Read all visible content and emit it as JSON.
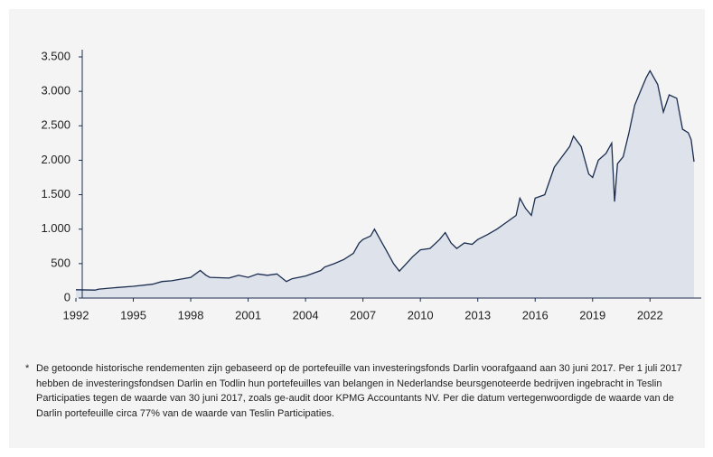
{
  "chart_data": {
    "type": "area",
    "x": [
      1992,
      1993,
      1993.2,
      1994,
      1995,
      1996,
      1996.5,
      1997,
      1998,
      1998.5,
      1998.8,
      1999,
      2000,
      2000.5,
      2001,
      2001.5,
      2002,
      2002.5,
      2003,
      2003.3,
      2004,
      2004.8,
      2005,
      2005.5,
      2006,
      2006.5,
      2006.8,
      2007,
      2007.4,
      2007.6,
      2007.9,
      2008.2,
      2008.6,
      2008.9,
      2009.2,
      2009.6,
      2010,
      2010.5,
      2011,
      2011.3,
      2011.6,
      2011.9,
      2012.3,
      2012.7,
      2013,
      2013.5,
      2014,
      2014.5,
      2015,
      2015.2,
      2015.5,
      2015.8,
      2016,
      2016.5,
      2017,
      2017.4,
      2017.8,
      2018,
      2018.4,
      2018.8,
      2019,
      2019.3,
      2019.7,
      2020,
      2020.15,
      2020.3,
      2020.6,
      2020.9,
      2021.2,
      2021.5,
      2021.8,
      2022,
      2022.4,
      2022.7,
      2023,
      2023.4,
      2023.7,
      2024,
      2024.15,
      2024.3
    ],
    "values": [
      120,
      115,
      130,
      150,
      170,
      200,
      240,
      250,
      300,
      400,
      330,
      300,
      290,
      330,
      300,
      350,
      330,
      350,
      240,
      280,
      320,
      400,
      450,
      500,
      560,
      650,
      800,
      850,
      900,
      1000,
      850,
      700,
      500,
      390,
      480,
      600,
      700,
      720,
      850,
      950,
      800,
      720,
      800,
      780,
      850,
      920,
      1000,
      1100,
      1200,
      1450,
      1300,
      1200,
      1450,
      1500,
      1900,
      2050,
      2200,
      2350,
      2200,
      1800,
      1750,
      2000,
      2100,
      2250,
      1400,
      1950,
      2050,
      2400,
      2800,
      3000,
      3200,
      3300,
      3100,
      2700,
      2950,
      2900,
      2450,
      2400,
      2300,
      1980
    ],
    "color": "#1b2d4f",
    "fill": "#dde2eb",
    "xlim": [
      1992,
      2024.3
    ],
    "xticks": [
      1992,
      1995,
      1998,
      2001,
      2004,
      2007,
      2010,
      2013,
      2016,
      2019,
      2022
    ],
    "ylim": [
      0,
      3500
    ],
    "yticks": [
      0,
      500,
      {
        "value": 1000,
        "label": "1.000"
      },
      {
        "value": 1500,
        "label": "1.500"
      },
      {
        "value": 2000,
        "label": "2.000"
      },
      {
        "value": 2500,
        "label": "2.500"
      },
      {
        "value": 3000,
        "label": "3.000"
      },
      {
        "value": 3500,
        "label": "3.500"
      }
    ]
  },
  "footnote": {
    "marker": "*",
    "text": "De getoonde historische rendementen zijn gebaseerd op de portefeuille van investeringsfonds Darlin voorafgaand aan 30 juni 2017. Per 1 juli 2017 hebben de investeringsfondsen Darlin en Todlin hun portefeuilles van belangen in Nederlandse beursgenoteerde bedrijven ingebracht in Teslin Participaties tegen de waarde van 30 juni 2017, zoals ge-audit door KPMG Accountants NV. Per die datum vertegenwoordigde de waarde van de Darlin portefeuille circa 77% van de waarde van Teslin Participaties."
  }
}
